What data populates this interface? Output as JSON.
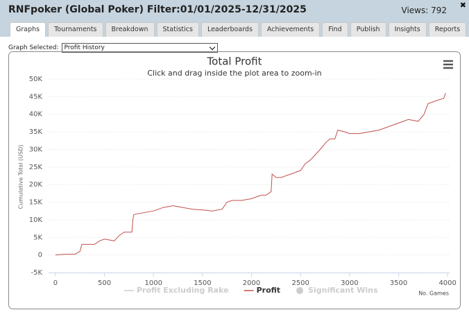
{
  "header": {
    "title": "RNFpoker (Global Poker) Filter:01/01/2025-12/31/2025",
    "views": "Views: 792",
    "close": "✖"
  },
  "tabs": {
    "items": [
      "Graphs",
      "Tournaments",
      "Breakdown",
      "Statistics",
      "Leaderboards",
      "Achievements",
      "Find",
      "Publish",
      "Insights",
      "Reports"
    ],
    "active": 0
  },
  "selector": {
    "label": "Graph Selected:",
    "value": "Profit History"
  },
  "chart_data": {
    "type": "line",
    "title": "Total Profit",
    "subtitle": "Click and drag inside the plot area to zoom-in",
    "y_label": "Cumulative Total (USD)",
    "x_label": "No. Games",
    "grid": true,
    "xlim": [
      -70,
      4020
    ],
    "ylim": [
      -5000,
      50000
    ],
    "xticks": [
      0,
      500,
      1000,
      1500,
      2000,
      2500,
      3000,
      3500,
      4000
    ],
    "yticks": [
      {
        "value": -5000,
        "label": "-5K"
      },
      0,
      {
        "value": 5000,
        "label": "5K"
      },
      {
        "value": 10000,
        "label": "10K"
      },
      {
        "value": 15000,
        "label": "15K"
      },
      {
        "value": 20000,
        "label": "20K"
      },
      {
        "value": 25000,
        "label": "25K"
      },
      {
        "value": 30000,
        "label": "30K"
      },
      {
        "value": 35000,
        "label": "35K"
      },
      {
        "value": 40000,
        "label": "40K"
      },
      {
        "value": 45000,
        "label": "45K"
      },
      {
        "value": 50000,
        "label": "50K"
      }
    ],
    "x": [
      0,
      100,
      200,
      250,
      270,
      400,
      450,
      500,
      600,
      650,
      700,
      780,
      790,
      800,
      1000,
      1100,
      1200,
      1300,
      1400,
      1500,
      1600,
      1700,
      1750,
      1800,
      1900,
      2000,
      2050,
      2100,
      2150,
      2200,
      2210,
      2250,
      2300,
      2400,
      2500,
      2550,
      2600,
      2650,
      2700,
      2760,
      2800,
      2850,
      2880,
      2950,
      3000,
      3100,
      3200,
      3300,
      3400,
      3500,
      3550,
      3600,
      3700,
      3760,
      3800,
      3900,
      3960,
      3980
    ],
    "series": [
      {
        "name": "Profit Excluding Rake",
        "color": "#cccccc",
        "visible": false,
        "marker": "line"
      },
      {
        "name": "Profit",
        "color": "#c0504d",
        "visible": true,
        "marker": "line",
        "values": [
          0,
          200,
          200,
          1000,
          3000,
          3000,
          4000,
          4500,
          4000,
          5500,
          6500,
          6500,
          10000,
          11500,
          12500,
          13500,
          14000,
          13500,
          13000,
          12800,
          12500,
          13000,
          15000,
          15500,
          15500,
          16000,
          16500,
          17000,
          17000,
          18000,
          23000,
          22000,
          22000,
          23000,
          24000,
          26000,
          27000,
          28500,
          30000,
          32000,
          33000,
          33000,
          35500,
          35000,
          34500,
          34500,
          35000,
          35500,
          36500,
          37500,
          38000,
          38500,
          38000,
          40000,
          43000,
          44000,
          44500,
          46000
        ]
      },
      {
        "name": "Significant Wins",
        "color": "#cccccc",
        "visible": false,
        "marker": "circle"
      }
    ]
  }
}
